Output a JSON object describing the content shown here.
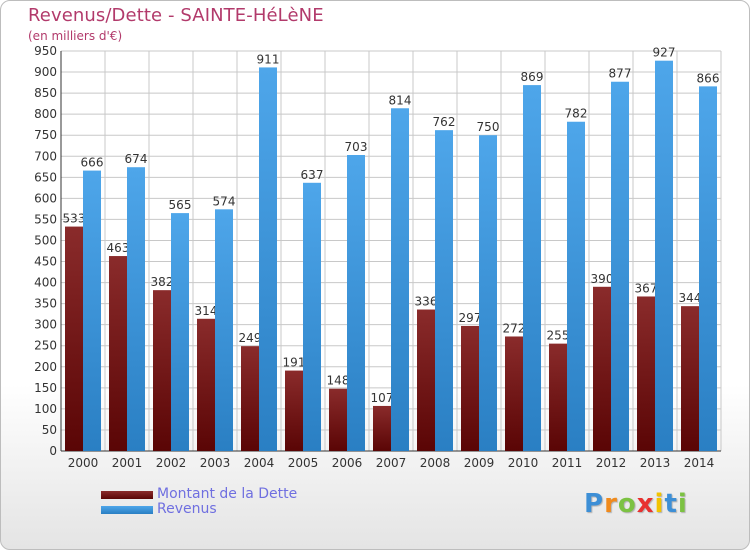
{
  "chart_data": {
    "type": "bar",
    "title": "Revenus/Dette - SAINTE-HéLèNE",
    "subtitle": "(en milliers d'€)",
    "categories": [
      "2000",
      "2001",
      "2002",
      "2003",
      "2004",
      "2005",
      "2006",
      "2007",
      "2008",
      "2009",
      "2010",
      "2011",
      "2012",
      "2013",
      "2014"
    ],
    "series": [
      {
        "name": "Montant de la Dette",
        "color": "#7a1f1f",
        "values": [
          533,
          463,
          382,
          314,
          249,
          191,
          148,
          107,
          336,
          297,
          272,
          255,
          390,
          367,
          344
        ]
      },
      {
        "name": "Revenus",
        "color": "#3d95dc",
        "values": [
          666,
          674,
          565,
          574,
          911,
          637,
          703,
          814,
          762,
          750,
          869,
          782,
          877,
          927,
          866
        ]
      }
    ],
    "ylim": [
      0,
      950
    ],
    "yticks": [
      0,
      50,
      100,
      150,
      200,
      250,
      300,
      350,
      400,
      450,
      500,
      550,
      600,
      650,
      700,
      750,
      800,
      850,
      900,
      950
    ],
    "grid": true,
    "legend": "bottom-left"
  },
  "logo": {
    "letters": [
      "P",
      "r",
      "o",
      "x",
      "i",
      "t",
      "i"
    ]
  }
}
